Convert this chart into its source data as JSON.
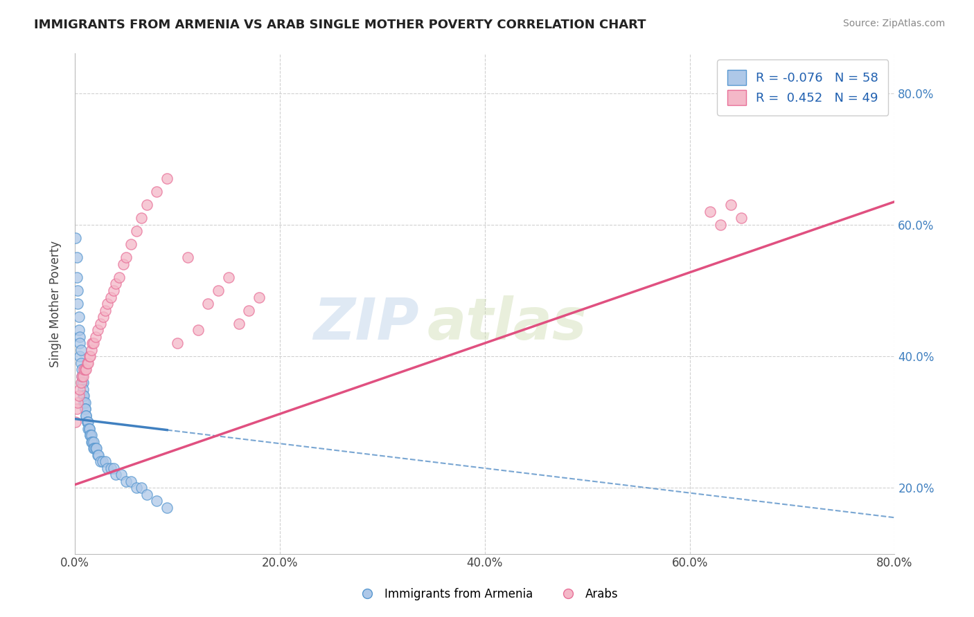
{
  "title": "IMMIGRANTS FROM ARMENIA VS ARAB SINGLE MOTHER POVERTY CORRELATION CHART",
  "source": "Source: ZipAtlas.com",
  "ylabel": "Single Mother Poverty",
  "xlim": [
    0.0,
    0.8
  ],
  "ylim": [
    0.1,
    0.86
  ],
  "xtick_labels": [
    "0.0%",
    "20.0%",
    "40.0%",
    "60.0%",
    "80.0%"
  ],
  "xtick_vals": [
    0.0,
    0.2,
    0.4,
    0.6,
    0.8
  ],
  "ytick_labels_right": [
    "20.0%",
    "40.0%",
    "60.0%",
    "80.0%"
  ],
  "ytick_vals_right": [
    0.2,
    0.4,
    0.6,
    0.8
  ],
  "R_blue": -0.076,
  "N_blue": 58,
  "R_pink": 0.452,
  "N_pink": 49,
  "blue_color": "#aec8e8",
  "pink_color": "#f4b8c8",
  "blue_edge_color": "#5898d0",
  "pink_edge_color": "#e87098",
  "blue_line_color": "#4080c0",
  "pink_line_color": "#e05080",
  "legend_R_color": "#2060b0",
  "watermark_zip": "ZIP",
  "watermark_atlas": "atlas",
  "blue_scatter_x": [
    0.001,
    0.002,
    0.002,
    0.003,
    0.003,
    0.004,
    0.004,
    0.005,
    0.005,
    0.005,
    0.006,
    0.006,
    0.007,
    0.007,
    0.007,
    0.008,
    0.008,
    0.008,
    0.009,
    0.009,
    0.01,
    0.01,
    0.01,
    0.011,
    0.011,
    0.012,
    0.012,
    0.013,
    0.013,
    0.014,
    0.014,
    0.015,
    0.015,
    0.016,
    0.016,
    0.017,
    0.018,
    0.018,
    0.019,
    0.02,
    0.021,
    0.022,
    0.023,
    0.025,
    0.027,
    0.03,
    0.032,
    0.035,
    0.038,
    0.04,
    0.045,
    0.05,
    0.055,
    0.06,
    0.065,
    0.07,
    0.08,
    0.09
  ],
  "blue_scatter_y": [
    0.58,
    0.55,
    0.52,
    0.5,
    0.48,
    0.46,
    0.44,
    0.43,
    0.42,
    0.4,
    0.41,
    0.39,
    0.38,
    0.37,
    0.36,
    0.36,
    0.35,
    0.34,
    0.34,
    0.33,
    0.33,
    0.32,
    0.32,
    0.31,
    0.31,
    0.3,
    0.3,
    0.3,
    0.29,
    0.29,
    0.29,
    0.28,
    0.28,
    0.28,
    0.27,
    0.27,
    0.27,
    0.26,
    0.26,
    0.26,
    0.26,
    0.25,
    0.25,
    0.24,
    0.24,
    0.24,
    0.23,
    0.23,
    0.23,
    0.22,
    0.22,
    0.21,
    0.21,
    0.2,
    0.2,
    0.19,
    0.18,
    0.17
  ],
  "pink_scatter_x": [
    0.001,
    0.002,
    0.003,
    0.004,
    0.005,
    0.006,
    0.007,
    0.008,
    0.009,
    0.01,
    0.011,
    0.012,
    0.013,
    0.014,
    0.015,
    0.016,
    0.017,
    0.018,
    0.02,
    0.022,
    0.025,
    0.028,
    0.03,
    0.032,
    0.035,
    0.038,
    0.04,
    0.043,
    0.047,
    0.05,
    0.055,
    0.06,
    0.065,
    0.07,
    0.08,
    0.09,
    0.1,
    0.11,
    0.12,
    0.13,
    0.14,
    0.15,
    0.16,
    0.17,
    0.18,
    0.62,
    0.63,
    0.64,
    0.65
  ],
  "pink_scatter_y": [
    0.3,
    0.32,
    0.33,
    0.34,
    0.35,
    0.36,
    0.37,
    0.37,
    0.38,
    0.38,
    0.38,
    0.39,
    0.39,
    0.4,
    0.4,
    0.41,
    0.42,
    0.42,
    0.43,
    0.44,
    0.45,
    0.46,
    0.47,
    0.48,
    0.49,
    0.5,
    0.51,
    0.52,
    0.54,
    0.55,
    0.57,
    0.59,
    0.61,
    0.63,
    0.65,
    0.67,
    0.42,
    0.55,
    0.44,
    0.48,
    0.5,
    0.52,
    0.45,
    0.47,
    0.49,
    0.62,
    0.6,
    0.63,
    0.61
  ],
  "blue_trend_x": [
    0.0,
    0.8
  ],
  "blue_trend_y_start": 0.305,
  "blue_trend_y_end": 0.155,
  "pink_trend_x": [
    0.0,
    0.8
  ],
  "pink_trend_y_start": 0.205,
  "pink_trend_y_end": 0.635
}
